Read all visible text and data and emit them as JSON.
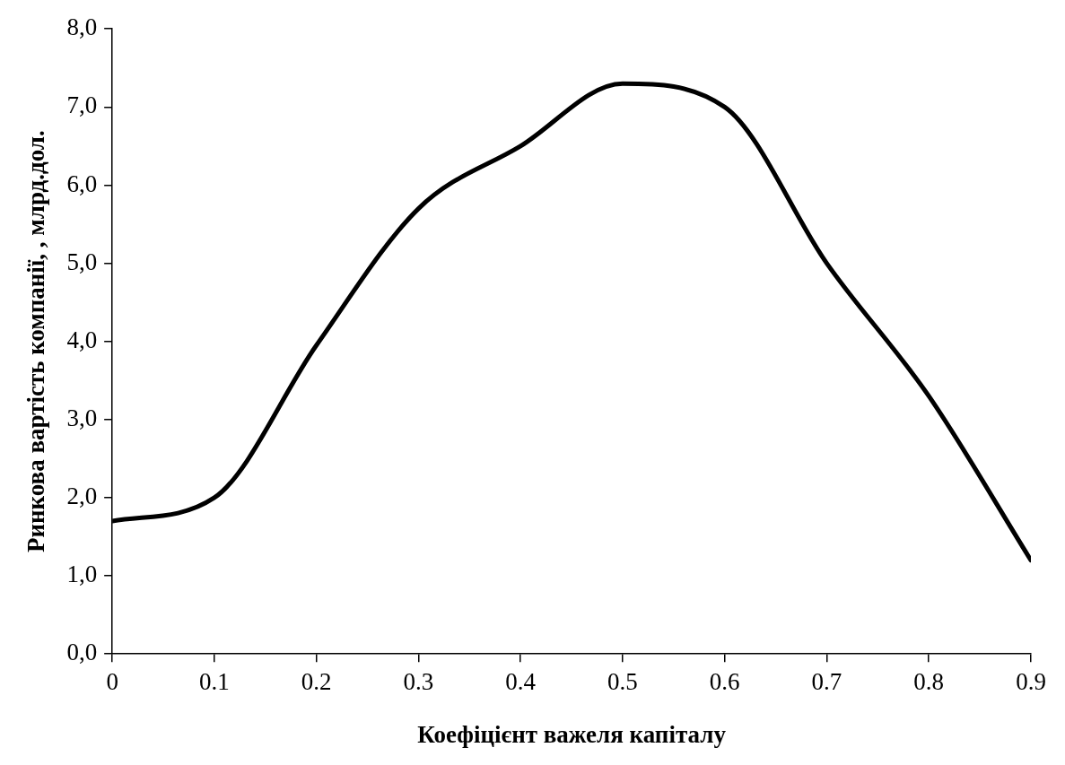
{
  "chart_data": {
    "type": "line",
    "xlabel": "Коефіцієнт важеля капіталу",
    "ylabel": "Ринкова вартість компанії, , млрд.дол.",
    "x": [
      0,
      0.1,
      0.2,
      0.3,
      0.4,
      0.5,
      0.6,
      0.7,
      0.8,
      0.9
    ],
    "series": [
      {
        "color": "#000000",
        "values": [
          1.7,
          2.0,
          3.95,
          5.7,
          6.5,
          7.3,
          7.0,
          5.0,
          3.3,
          1.2
        ]
      }
    ],
    "xlim": [
      0,
      0.9
    ],
    "xticks": [
      0,
      0.1,
      0.2,
      0.3,
      0.4,
      0.5,
      0.6,
      0.7,
      0.8,
      0.9
    ],
    "ylim": [
      0,
      8
    ],
    "yticks": [
      {
        "value": 0,
        "label": "0,0"
      },
      {
        "value": 1,
        "label": "1,0"
      },
      {
        "value": 2,
        "label": "2,0"
      },
      {
        "value": 3,
        "label": "3,0"
      },
      {
        "value": 4,
        "label": "4,0"
      },
      {
        "value": 5,
        "label": "5,0"
      },
      {
        "value": 6,
        "label": "6,0"
      },
      {
        "value": 7,
        "label": "7,0"
      },
      {
        "value": 8,
        "label": "8,0"
      }
    ],
    "grid": false,
    "legend": false,
    "marker": "none",
    "line_style": "solid"
  }
}
